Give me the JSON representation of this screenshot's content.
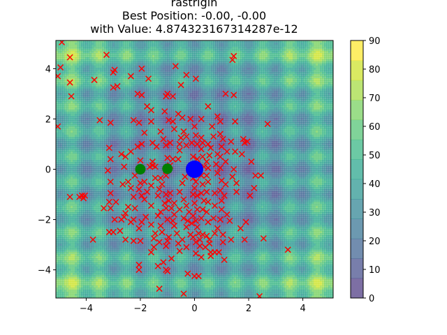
{
  "chart_data": {
    "type": "scatter",
    "title": "rastrigin",
    "subtitle_1": "Best Position: -0.00, -0.00",
    "subtitle_2": "with Value: 4.874323167314287e-12",
    "xlim": [
      -5.12,
      5.12
    ],
    "ylim": [
      -5.12,
      5.12
    ],
    "x_ticks": [
      -4,
      -2,
      0,
      2,
      4
    ],
    "y_ticks": [
      -4,
      -2,
      0,
      2,
      4
    ],
    "colorbar": {
      "ticks": [
        0,
        10,
        20,
        30,
        40,
        50,
        60,
        70,
        80,
        90
      ],
      "range": [
        0,
        90
      ],
      "colors": [
        "#46327e",
        "#3f4788",
        "#365c8d",
        "#2e6e8e",
        "#277f8e",
        "#21918c",
        "#1fa187",
        "#2db27d",
        "#4ac16d",
        "#71cf57",
        "#a0da39",
        "#cae11f",
        "#fde725"
      ]
    },
    "background": {
      "function": "rastrigin",
      "style": "filled-contour",
      "alpha": 0.7
    },
    "best_position": {
      "x": 0.0,
      "y": 0.0,
      "color": "#0000ff"
    },
    "green_points": [
      {
        "x": -2.0,
        "y": 0.0
      },
      {
        "x": -1.0,
        "y": 0.02
      }
    ],
    "red_markers": [
      [
        -4.9,
        5.05
      ],
      [
        -4.6,
        4.45
      ],
      [
        -4.6,
        3.45
      ],
      [
        -4.55,
        2.9
      ],
      [
        -4.95,
        4.05
      ],
      [
        -5.05,
        3.7
      ],
      [
        -5.05,
        1.7
      ],
      [
        -3.25,
        4.55
      ],
      [
        -2.95,
        3.95
      ],
      [
        -3.0,
        3.25
      ],
      [
        -2.85,
        3.3
      ],
      [
        -3.0,
        3.85
      ],
      [
        -1.95,
        4.0
      ],
      [
        -2.35,
        3.7
      ],
      [
        -1.7,
        3.6
      ],
      [
        -0.7,
        4.1
      ],
      [
        -1.0,
        3.0
      ],
      [
        -1.05,
        2.9
      ],
      [
        -0.8,
        2.9
      ],
      [
        -0.5,
        3.35
      ],
      [
        -0.3,
        3.75
      ],
      [
        0.05,
        3.6
      ],
      [
        -1.95,
        2.95
      ],
      [
        -2.1,
        3.0
      ],
      [
        -1.75,
        2.5
      ],
      [
        -1.6,
        2.35
      ],
      [
        -1.1,
        2.3
      ],
      [
        -0.95,
        1.95
      ],
      [
        -0.45,
        2.05
      ],
      [
        -0.4,
        1.5
      ],
      [
        0.0,
        1.7
      ],
      [
        0.5,
        2.5
      ],
      [
        0.65,
        1.7
      ],
      [
        0.95,
        1.9
      ],
      [
        1.15,
        3.0
      ],
      [
        1.45,
        2.95
      ],
      [
        1.4,
        4.35
      ],
      [
        1.45,
        4.5
      ],
      [
        -3.7,
        3.55
      ],
      [
        -3.5,
        1.95
      ],
      [
        -3.1,
        1.85
      ],
      [
        -2.25,
        1.95
      ],
      [
        -2.05,
        1.85
      ],
      [
        -4.25,
        -1.1
      ],
      [
        -4.15,
        -1.05
      ],
      [
        -4.1,
        -1.15
      ],
      [
        -4.6,
        -1.1
      ],
      [
        -3.15,
        -2.5
      ],
      [
        -3.0,
        -2.5
      ],
      [
        -3.75,
        -2.8
      ],
      [
        -2.95,
        -2.0
      ],
      [
        -2.6,
        -1.9
      ],
      [
        -2.45,
        -1.5
      ],
      [
        -2.25,
        -2.0
      ],
      [
        -2.25,
        -2.85
      ],
      [
        -2.0,
        -2.85
      ],
      [
        -2.05,
        -3.8
      ],
      [
        -2.05,
        -4.0
      ],
      [
        -1.6,
        -3.3
      ],
      [
        -1.35,
        -3.85
      ],
      [
        -1.15,
        -3.7
      ],
      [
        -1.05,
        -4.0
      ],
      [
        -1.0,
        -4.05
      ],
      [
        -1.3,
        -4.75
      ],
      [
        -0.4,
        -4.95
      ],
      [
        0.0,
        -4.25
      ],
      [
        0.15,
        -4.25
      ],
      [
        1.1,
        -3.6
      ],
      [
        0.6,
        -3.3
      ],
      [
        0.75,
        -3.3
      ],
      [
        1.05,
        -2.9
      ],
      [
        1.35,
        -2.8
      ],
      [
        1.7,
        -2.35
      ],
      [
        1.85,
        -2.8
      ],
      [
        2.55,
        -2.75
      ],
      [
        2.4,
        -5.05
      ],
      [
        3.45,
        -3.2
      ],
      [
        2.2,
        -0.75
      ],
      [
        1.55,
        -0.9
      ],
      [
        1.4,
        -0.3
      ],
      [
        1.45,
        0.0
      ],
      [
        1.2,
        0.7
      ],
      [
        1.5,
        0.7
      ],
      [
        1.95,
        1.1
      ],
      [
        1.8,
        1.2
      ],
      [
        2.1,
        0.3
      ],
      [
        2.7,
        1.8
      ],
      [
        -3.15,
        0.85
      ],
      [
        -3.1,
        0.4
      ],
      [
        -3.2,
        -0.05
      ],
      [
        -3.1,
        -0.5
      ],
      [
        -3.15,
        -1.3
      ],
      [
        -3.1,
        -1.55
      ],
      [
        -2.9,
        -1.3
      ],
      [
        -2.6,
        0.1
      ],
      [
        -2.45,
        -0.5
      ],
      [
        -2.2,
        -0.25
      ],
      [
        -2.0,
        -0.55
      ],
      [
        -2.0,
        0.05
      ],
      [
        -1.65,
        0.1
      ],
      [
        -1.55,
        0.15
      ],
      [
        -1.45,
        0.1
      ],
      [
        -1.25,
        -0.35
      ],
      [
        -1.2,
        -0.6
      ],
      [
        -1.3,
        -0.8
      ],
      [
        -1.05,
        -1.0
      ],
      [
        -0.9,
        -0.95
      ],
      [
        -0.75,
        -1.35
      ],
      [
        -0.85,
        -1.55
      ],
      [
        -0.55,
        -1.6
      ],
      [
        -0.4,
        -1.95
      ],
      [
        -0.25,
        -2.05
      ],
      [
        -0.3,
        -2.3
      ],
      [
        -0.15,
        -2.6
      ],
      [
        -0.05,
        -2.7
      ],
      [
        0.05,
        -2.9
      ],
      [
        0.45,
        -2.65
      ],
      [
        0.55,
        -2.8
      ],
      [
        0.55,
        -2.95
      ],
      [
        0.2,
        -3.05
      ],
      [
        -0.75,
        -2.25
      ],
      [
        -0.8,
        -2.05
      ],
      [
        -1.0,
        -2.0
      ],
      [
        -1.2,
        -2.5
      ],
      [
        -1.45,
        -2.55
      ],
      [
        -1.5,
        -2.75
      ],
      [
        -1.3,
        -2.9
      ],
      [
        -1.0,
        -2.85
      ],
      [
        -1.95,
        -2.1
      ],
      [
        -1.8,
        -1.9
      ],
      [
        -1.85,
        -1.2
      ],
      [
        -1.6,
        -1.45
      ],
      [
        -1.95,
        -1.05
      ],
      [
        -2.25,
        -1.1
      ],
      [
        -2.55,
        -1.75
      ],
      [
        -2.7,
        -2.0
      ],
      [
        -2.55,
        -2.8
      ],
      [
        -2.2,
        -1.55
      ],
      [
        -0.9,
        0.15
      ],
      [
        -0.8,
        0.4
      ],
      [
        -0.6,
        0.4
      ],
      [
        -0.55,
        0.75
      ],
      [
        -0.55,
        1.0
      ],
      [
        -0.3,
        0.95
      ],
      [
        -0.1,
        1.05
      ],
      [
        0.1,
        1.0
      ],
      [
        0.3,
        1.05
      ],
      [
        0.5,
        1.0
      ],
      [
        0.6,
        0.85
      ],
      [
        0.55,
        0.55
      ],
      [
        0.45,
        0.3
      ],
      [
        0.5,
        0.05
      ],
      [
        0.45,
        -0.25
      ],
      [
        0.5,
        -0.5
      ],
      [
        0.45,
        -0.9
      ],
      [
        0.5,
        -1.3
      ],
      [
        0.45,
        -1.7
      ],
      [
        0.5,
        -2.1
      ],
      [
        0.95,
        -2.0
      ],
      [
        1.0,
        -1.6
      ],
      [
        1.0,
        -1.25
      ],
      [
        0.95,
        -0.85
      ],
      [
        1.0,
        -0.45
      ],
      [
        0.95,
        0.05
      ],
      [
        0.95,
        0.5
      ],
      [
        1.0,
        0.9
      ],
      [
        1.05,
        1.2
      ],
      [
        0.7,
        1.3
      ],
      [
        0.25,
        1.25
      ],
      [
        0.05,
        1.35
      ],
      [
        -0.3,
        1.3
      ],
      [
        -0.5,
        1.25
      ],
      [
        -0.9,
        1.05
      ],
      [
        -1.05,
        0.95
      ],
      [
        -0.05,
        0.5
      ],
      [
        0.1,
        0.4
      ],
      [
        -0.05,
        -0.35
      ],
      [
        0.05,
        -0.5
      ],
      [
        0.0,
        -0.75
      ],
      [
        -0.05,
        -1.0
      ],
      [
        0.1,
        -1.05
      ],
      [
        0.0,
        -1.35
      ],
      [
        0.1,
        -1.6
      ],
      [
        -0.05,
        -1.85
      ],
      [
        0.05,
        -2.05
      ],
      [
        0.1,
        -2.3
      ],
      [
        0.15,
        -2.55
      ],
      [
        0.3,
        -2.6
      ],
      [
        0.2,
        -2.8
      ],
      [
        -0.35,
        -0.3
      ],
      [
        -0.45,
        -0.55
      ],
      [
        -0.55,
        -0.9
      ],
      [
        -0.4,
        -1.2
      ],
      [
        -0.3,
        -1.45
      ],
      [
        -0.2,
        -1.7
      ],
      [
        -0.1,
        -2.15
      ],
      [
        0.25,
        -1.95
      ],
      [
        0.3,
        -1.6
      ],
      [
        0.35,
        -1.25
      ],
      [
        0.25,
        -0.95
      ],
      [
        0.3,
        -0.6
      ],
      [
        0.25,
        -0.25
      ],
      [
        0.35,
        0.1
      ],
      [
        0.3,
        0.5
      ],
      [
        0.25,
        0.8
      ],
      [
        0.85,
        -0.15
      ],
      [
        0.8,
        0.2
      ],
      [
        -1.0,
        0.45
      ],
      [
        -1.05,
        -0.25
      ],
      [
        -1.1,
        -1.35
      ],
      [
        -1.25,
        -1.7
      ],
      [
        -1.35,
        -1.85
      ],
      [
        -1.6,
        -2.2
      ],
      [
        -2.05,
        -2.35
      ],
      [
        -2.35,
        -2.1
      ],
      [
        -1.15,
        1.2
      ],
      [
        -1.25,
        1.5
      ],
      [
        -1.6,
        1.9
      ],
      [
        -1.85,
        1.45
      ],
      [
        -1.95,
        1.0
      ],
      [
        -2.1,
        0.9
      ],
      [
        -1.4,
        0.9
      ],
      [
        -0.75,
        1.6
      ],
      [
        0.95,
        1.4
      ],
      [
        1.35,
        1.1
      ],
      [
        1.55,
        -0.55
      ],
      [
        -0.3,
        -3.1
      ],
      [
        -0.55,
        -3.25
      ],
      [
        -0.85,
        -3.55
      ],
      [
        -1.5,
        -3.1
      ],
      [
        -2.55,
        0.5
      ],
      [
        -3.1,
        -0.95
      ],
      [
        -3.35,
        -1.55
      ],
      [
        -2.75,
        -2.45
      ],
      [
        -4.05,
        -1.05
      ],
      [
        0.9,
        -3.3
      ],
      [
        0.6,
        -3.45
      ],
      [
        1.3,
        -2.05
      ],
      [
        1.05,
        -2.6
      ],
      [
        0.85,
        -2.35
      ],
      [
        -1.85,
        -0.5
      ],
      [
        -1.6,
        -0.65
      ],
      [
        -1.45,
        -0.35
      ],
      [
        -1.55,
        0.3
      ],
      [
        -2.0,
        0.35
      ],
      [
        -2.35,
        0.7
      ],
      [
        -2.7,
        0.6
      ],
      [
        -2.65,
        -0.6
      ],
      [
        -2.35,
        -0.75
      ],
      [
        -2.05,
        -0.8
      ],
      [
        -1.75,
        -0.9
      ],
      [
        -1.35,
        -1.05
      ],
      [
        -0.95,
        -1.25
      ],
      [
        -0.75,
        -1.8
      ],
      [
        -1.05,
        -1.55
      ],
      [
        -1.25,
        -2.25
      ],
      [
        -0.65,
        -2.55
      ],
      [
        -0.45,
        -2.8
      ],
      [
        -0.6,
        -2.95
      ],
      [
        -0.95,
        -2.7
      ],
      [
        -1.05,
        -3.05
      ],
      [
        0.75,
        -2.55
      ],
      [
        1.2,
        -1.8
      ],
      [
        1.1,
        -1.05
      ],
      [
        1.15,
        -0.6
      ],
      [
        1.15,
        0.3
      ],
      [
        0.85,
        0.6
      ],
      [
        0.75,
        -0.95
      ],
      [
        0.75,
        -1.45
      ],
      [
        0.7,
        -1.95
      ],
      [
        0.05,
        -3.35
      ],
      [
        0.25,
        -3.5
      ],
      [
        0.4,
        -3.1
      ],
      [
        1.9,
        -2.1
      ],
      [
        2.05,
        -1.05
      ],
      [
        -0.25,
        -4.15
      ],
      [
        -1.55,
        1.05
      ],
      [
        -0.8,
        1.9
      ],
      [
        -0.6,
        2.2
      ],
      [
        -0.15,
        2.0
      ],
      [
        0.25,
        2.0
      ],
      [
        0.85,
        2.1
      ],
      [
        1.5,
        1.9
      ],
      [
        1.75,
        0.6
      ],
      [
        1.85,
        1.05
      ],
      [
        2.25,
        -0.25
      ],
      [
        2.45,
        -0.25
      ]
    ]
  }
}
